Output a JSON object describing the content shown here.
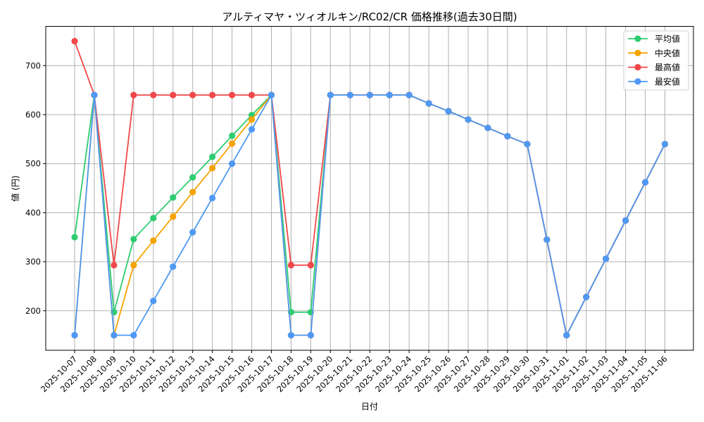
{
  "chart_data": {
    "type": "line",
    "title": "アルティマヤ・ツィオルキン/RC02/CR 価格推移(過去30日間)",
    "xlabel": "日付",
    "ylabel": "値 (円)",
    "ylim": [
      120,
      780
    ],
    "yticks": [
      200,
      300,
      400,
      500,
      600,
      700
    ],
    "grid": true,
    "legend_position": "upper right",
    "x": [
      "2025-10-07",
      "2025-10-08",
      "2025-10-09",
      "2025-10-10",
      "2025-10-11",
      "2025-10-12",
      "2025-10-13",
      "2025-10-14",
      "2025-10-15",
      "2025-10-16",
      "2025-10-17",
      "2025-10-18",
      "2025-10-19",
      "2025-10-20",
      "2025-10-21",
      "2025-10-22",
      "2025-10-23",
      "2025-10-24",
      "2025-10-25",
      "2025-10-26",
      "2025-10-27",
      "2025-10-28",
      "2025-10-29",
      "2025-10-30",
      "2025-10-31",
      "2025-11-01",
      "2025-11-02",
      "2025-11-03",
      "2025-11-04",
      "2025-11-05",
      "2025-11-06"
    ],
    "series": [
      {
        "name": "平均値",
        "color": "#2ecc71",
        "values": [
          350,
          640,
          197,
          346,
          389,
          431,
          472,
          514,
          557,
          599,
          640,
          197,
          197,
          640,
          640,
          640,
          640,
          640,
          623,
          607,
          590,
          573,
          556,
          540,
          345,
          150,
          228,
          306,
          384,
          462,
          540
        ]
      },
      {
        "name": "中央値",
        "color": "#f5a300",
        "values": [
          150,
          640,
          150,
          293,
          343,
          392,
          442,
          491,
          541,
          590,
          640,
          150,
          150,
          640,
          640,
          640,
          640,
          640,
          623,
          607,
          590,
          573,
          556,
          540,
          345,
          150,
          228,
          306,
          384,
          462,
          540
        ]
      },
      {
        "name": "最高値",
        "color": "#f0484a",
        "values": [
          750,
          640,
          293,
          640,
          640,
          640,
          640,
          640,
          640,
          640,
          640,
          293,
          293,
          640,
          640,
          640,
          640,
          640,
          623,
          607,
          590,
          573,
          556,
          540,
          345,
          150,
          228,
          306,
          384,
          462,
          540
        ]
      },
      {
        "name": "最安値",
        "color": "#4f98f5",
        "values": [
          150,
          640,
          150,
          150,
          220,
          290,
          360,
          430,
          500,
          570,
          640,
          150,
          150,
          640,
          640,
          640,
          640,
          640,
          623,
          607,
          590,
          573,
          556,
          540,
          345,
          150,
          228,
          306,
          384,
          462,
          540
        ]
      }
    ]
  }
}
